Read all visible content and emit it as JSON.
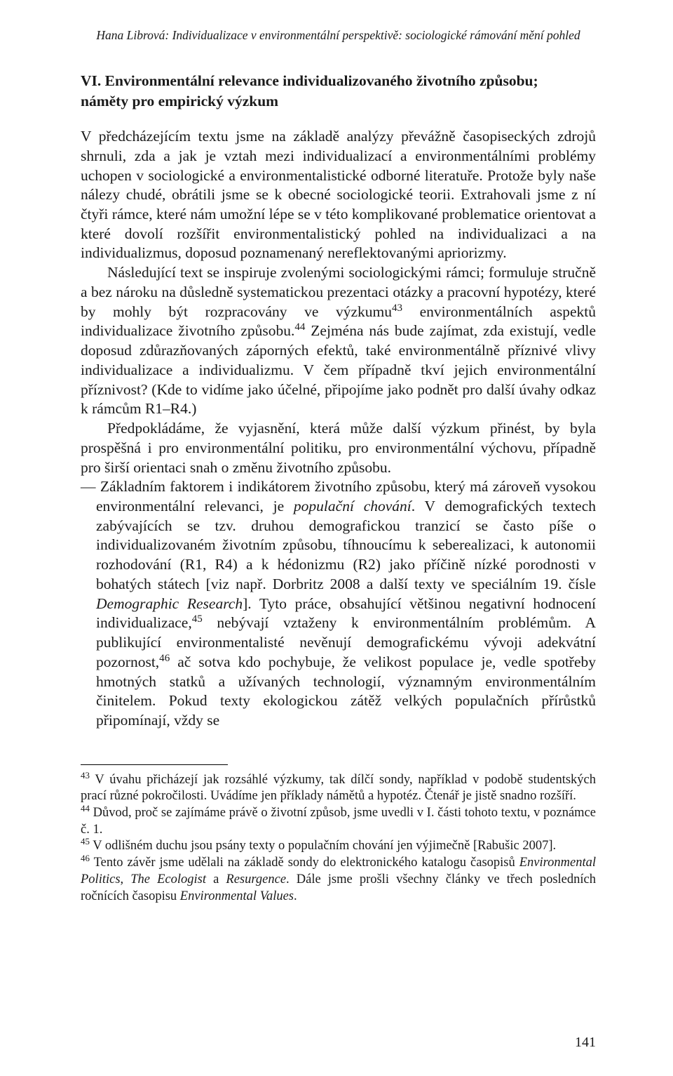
{
  "running_header": "Hana Librová: Individualizace v environmentální perspektivě: sociologické rámování mění pohled",
  "section_heading_line1": "VI. Environmentální relevance individualizovaného životního způsobu;",
  "section_heading_line2": "náměty pro empirický výzkum",
  "para1": "V předcházejícím textu jsme na základě analýzy převážně časopiseckých zdrojů shrnuli, zda a jak je vztah mezi individualizací a environmentálními problémy uchopen v sociologické a environmentalistické odborné literatuře. Protože byly naše nálezy chudé, obrátili jsme se k obecné sociologické teorii. Extrahovali jsme z ní čtyři rámce, které nám umožní lépe se v této komplikované problematice orientovat a které dovolí rozšířit environmentalistický pohled na individualizaci a na individualizmus, doposud poznamenaný nereflektovanými apriorizmy.",
  "para2_a": "Následující text se inspiruje zvolenými sociologickými rámci; formuluje stručně a bez nároku na důsledně systematickou prezentaci otázky a pracovní hypotézy, které by mohly být rozpracovány ve výzkumu",
  "para2_b": " environmentálních aspektů individualizace životního způsobu.",
  "para2_c": " Zejména nás bude zajímat, zda existují, vedle doposud zdůrazňovaných záporných efektů, také environmentálně příznivé vlivy individualizace a individualizmu. V čem případně tkví jejich environmentální příznivost? (Kde to vidíme jako účelné, připojíme jako podnět pro další úvahy odkaz k rámcům R1–R4.)",
  "para3": "Předpokládáme, že vyjasnění, která může další výzkum přinést, by byla prospěšná i pro environmentální politiku, pro environmentální výchovu, případně pro širší orientaci snah o změnu životního způsobu.",
  "para4_a": "— Základním faktorem i indikátorem životního způsobu, který má zároveň vysokou environmentální relevanci, je ",
  "para4_italic1": "populační chování",
  "para4_b": ". V demografických textech zabývajících se tzv. druhou demografickou tranzicí se často píše o individualizovaném životním způsobu, tíhnoucímu k seberealizaci, k autonomii rozhodování (R1, R4) a k hédonizmu (R2) jako příčině nízké porodnosti v bohatých státech [viz např. Dorbritz 2008 a další texty ve speciálním 19. čísle ",
  "para4_italic2": "Demographic Research",
  "para4_c": "]. Tyto práce, obsahující většinou negativní hodnocení individualizace,",
  "para4_d": " nebývají vztaženy k environmentálním problémům. A publikující environmentalisté nevěnují demografickému vývoji adekvátní pozornost,",
  "para4_e": " ač sotva kdo pochybuje, že velikost populace je, vedle spotřeby hmotných statků a užívaných technologií, významným environmentálním činitelem. Pokud texty ekologickou zátěž velkých populačních přírůstků připomínají, vždy se",
  "sup43": "43",
  "sup44": "44",
  "sup45": "45",
  "sup46": "46",
  "fn43_a": " V úvahu přicházejí jak rozsáhlé výzkumy, tak dílčí sondy, například v podobě studentských prací různé pokročilosti. Uvádíme jen příklady námětů a hypotéz. Čtenář je jistě snadno rozšíří.",
  "fn44_a": " Důvod, proč se zajímáme právě o životní způsob, jsme uvedli v I. části tohoto textu, v poznámce č. 1.",
  "fn45_a": " V odlišném duchu jsou psány texty o populačním chování jen výjimečně [Rabušic 2007].",
  "fn46_a": " Tento závěr jsme udělali na základě sondy do elektronického katalogu časopisů ",
  "fn46_i1": "Environmental Politics",
  "fn46_b": ", ",
  "fn46_i2": "The Ecologist",
  "fn46_c": " a ",
  "fn46_i3": "Resurgence",
  "fn46_d": ". Dále jsme prošli všechny články ve třech posledních ročnících časopisu ",
  "fn46_i4": "Environmental Values",
  "fn46_e": ".",
  "page_number": "141"
}
